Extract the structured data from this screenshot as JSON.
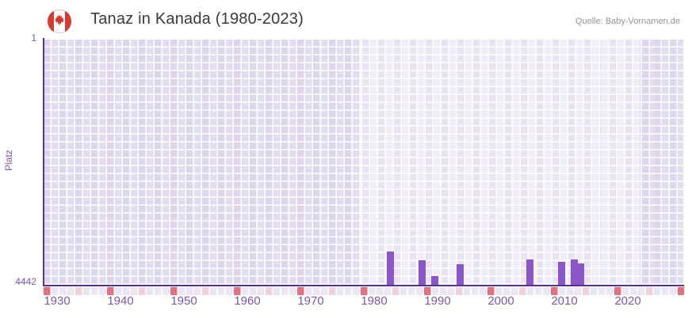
{
  "header": {
    "title": "Tanaz in Kanada (1980-2023)",
    "source": "Quelle: Baby-Vornamen.de"
  },
  "chart_data": {
    "type": "bar",
    "title": "Tanaz in Kanada (1980-2023)",
    "xlabel": "",
    "ylabel": "Platz",
    "y_axis": {
      "top_label": "1",
      "bottom_label": "4442",
      "min": 1,
      "max": 4442,
      "inverted": true
    },
    "x_ticks": [
      1930,
      1940,
      1950,
      1960,
      1970,
      1980,
      1990,
      2000,
      2010,
      2020
    ],
    "x_range": [
      1929,
      2030
    ],
    "highlight_year_range": [
      1980,
      2023
    ],
    "grid": true,
    "legend": null,
    "bars": [
      {
        "year": 1984,
        "rank": 3840
      },
      {
        "year": 1989,
        "rank": 4005
      },
      {
        "year": 1991,
        "rank": 4290
      },
      {
        "year": 1995,
        "rank": 4075
      },
      {
        "year": 2006,
        "rank": 3985
      },
      {
        "year": 2011,
        "rank": 4030
      },
      {
        "year": 2013,
        "rank": 3980
      },
      {
        "year": 2014,
        "rank": 4060
      }
    ],
    "colors": {
      "bar": "#8a55c6",
      "axis_line": "#54318e",
      "axis_text": "#7a56b4",
      "decade_tick": "#e4707e",
      "half_decade_tick": "#f4d0dd",
      "grid_dark_a": "#ddd6ec",
      "grid_dark_b": "#e3ddf1",
      "grid_light_a": "#f1edf9",
      "grid_light_b": "#e8e2f3",
      "title_text": "#3a3a3a",
      "source_text": "#949494"
    }
  }
}
